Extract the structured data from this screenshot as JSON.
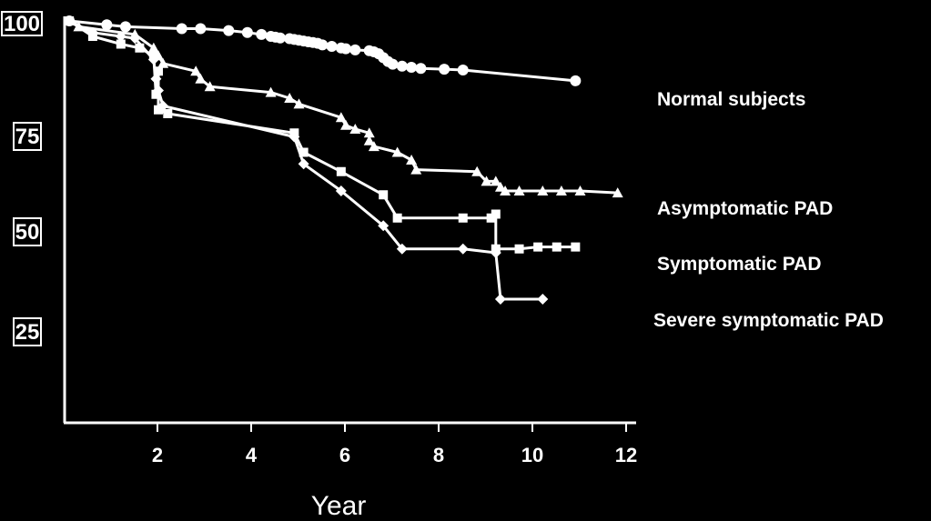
{
  "chart_data": {
    "type": "line",
    "xlabel": "Year",
    "ylabel": "",
    "title": "",
    "xlim": [
      0,
      12.3
    ],
    "ylim": [
      0,
      100.5
    ],
    "x_ticks": [
      "2",
      "4",
      "6",
      "8",
      "10",
      "12"
    ],
    "y_ticks": [
      "100",
      "75",
      "50",
      "25"
    ],
    "grid": false,
    "series": [
      {
        "name": "Normal subjects",
        "marker": "circle",
        "points": [
          [
            0.1,
            100
          ],
          [
            0.9,
            99
          ],
          [
            1.3,
            98.5
          ],
          [
            2.5,
            98
          ],
          [
            2.9,
            98
          ],
          [
            3.5,
            97.5
          ],
          [
            3.9,
            97
          ],
          [
            4.2,
            96.5
          ],
          [
            4.4,
            96
          ],
          [
            4.5,
            95.8
          ],
          [
            4.6,
            95.6
          ],
          [
            4.8,
            95.4
          ],
          [
            4.9,
            95.2
          ],
          [
            5.0,
            95.0
          ],
          [
            5.1,
            94.8
          ],
          [
            5.2,
            94.6
          ],
          [
            5.3,
            94.4
          ],
          [
            5.4,
            94.2
          ],
          [
            5.5,
            93.8
          ],
          [
            5.7,
            93.4
          ],
          [
            5.9,
            93.0
          ],
          [
            6.0,
            92.8
          ],
          [
            6.2,
            92.5
          ],
          [
            6.5,
            92.3
          ],
          [
            6.6,
            92.0
          ],
          [
            6.7,
            91.5
          ],
          [
            6.8,
            90.5
          ],
          [
            6.9,
            89.5
          ],
          [
            7.0,
            88.8
          ],
          [
            7.2,
            88.3
          ],
          [
            7.4,
            88.0
          ],
          [
            7.6,
            87.7
          ],
          [
            8.1,
            87.5
          ],
          [
            8.5,
            87.3
          ],
          [
            10.9,
            84.5
          ]
        ]
      },
      {
        "name": "Asymptomatic PAD",
        "marker": "triangle",
        "points": [
          [
            0.1,
            100
          ],
          [
            0.3,
            98.5
          ],
          [
            1.5,
            96.5
          ],
          [
            1.9,
            93
          ],
          [
            2.0,
            91
          ],
          [
            2.1,
            89
          ],
          [
            2.8,
            87
          ],
          [
            2.9,
            85
          ],
          [
            3.1,
            83
          ],
          [
            4.4,
            81.5
          ],
          [
            4.8,
            80
          ],
          [
            5.0,
            78.5
          ],
          [
            5.9,
            75
          ],
          [
            6.0,
            73
          ],
          [
            6.2,
            72
          ],
          [
            6.5,
            71
          ],
          [
            6.5,
            69
          ],
          [
            6.6,
            67.5
          ],
          [
            7.1,
            66
          ],
          [
            7.4,
            64
          ],
          [
            7.5,
            61.5
          ],
          [
            8.8,
            61
          ],
          [
            9.0,
            58.5
          ],
          [
            9.2,
            58.5
          ],
          [
            9.3,
            57
          ],
          [
            9.4,
            56
          ],
          [
            9.7,
            56
          ],
          [
            10.2,
            56
          ],
          [
            10.6,
            56
          ],
          [
            11.0,
            56
          ],
          [
            11.8,
            55.5
          ]
        ]
      },
      {
        "name": "Symptomatic PAD",
        "marker": "square",
        "points": [
          [
            0.1,
            100
          ],
          [
            0.6,
            96
          ],
          [
            1.2,
            94
          ],
          [
            1.6,
            93
          ],
          [
            1.9,
            91
          ],
          [
            1.95,
            81
          ],
          [
            2.0,
            87
          ],
          [
            2.0,
            77
          ],
          [
            2.2,
            76
          ],
          [
            4.9,
            71
          ],
          [
            5.1,
            66
          ],
          [
            5.9,
            61
          ],
          [
            6.8,
            55
          ],
          [
            7.1,
            49
          ],
          [
            8.5,
            49
          ],
          [
            9.1,
            49
          ],
          [
            9.2,
            50
          ],
          [
            9.2,
            41
          ],
          [
            9.7,
            41
          ],
          [
            10.1,
            41.5
          ],
          [
            10.5,
            41.5
          ],
          [
            10.9,
            41.5
          ]
        ]
      },
      {
        "name": "Severe symptomatic PAD",
        "marker": "diamond",
        "points": [
          [
            0.1,
            100
          ],
          [
            0.6,
            97
          ],
          [
            1.2,
            96
          ],
          [
            1.5,
            95.5
          ],
          [
            1.9,
            90
          ],
          [
            1.95,
            85
          ],
          [
            2.0,
            82
          ],
          [
            2.1,
            78
          ],
          [
            4.9,
            70
          ],
          [
            5.1,
            63
          ],
          [
            5.9,
            56
          ],
          [
            6.8,
            47
          ],
          [
            7.2,
            41
          ],
          [
            8.5,
            41
          ],
          [
            9.2,
            40
          ],
          [
            9.3,
            28
          ],
          [
            10.2,
            28
          ]
        ]
      }
    ]
  }
}
